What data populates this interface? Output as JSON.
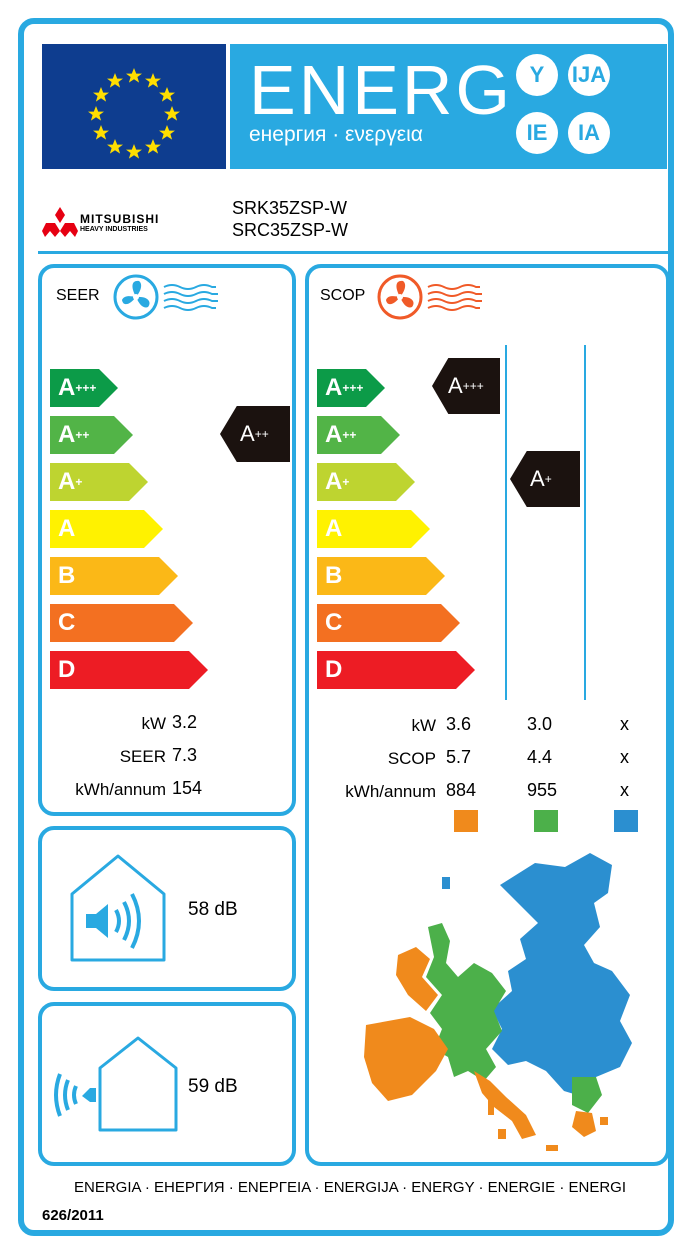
{
  "header": {
    "energy_word": "ENERG",
    "energy_subtitle": "енергия · ενεργεια",
    "suffixes": [
      "Y",
      "IJA",
      "IE",
      "IA"
    ]
  },
  "brand": {
    "name": "MITSUBISHI",
    "sub_name": "HEAVY INDUSTRIES",
    "model_indoor": "SRK35ZSP-W",
    "model_outdoor": "SRC35ZSP-W"
  },
  "scale_classes": [
    {
      "letter": "A",
      "sup": "+++",
      "color": "#0c9b48"
    },
    {
      "letter": "A",
      "sup": "++",
      "color": "#52b447"
    },
    {
      "letter": "A",
      "sup": "+",
      "color": "#bed430"
    },
    {
      "letter": "A",
      "sup": "",
      "color": "#fff200"
    },
    {
      "letter": "B",
      "sup": "",
      "color": "#fbb817"
    },
    {
      "letter": "C",
      "sup": "",
      "color": "#f37021"
    },
    {
      "letter": "D",
      "sup": "",
      "color": "#ed1c24"
    }
  ],
  "cooling": {
    "title": "SEER",
    "rating_letter": "A",
    "rating_sup": "++",
    "rows": [
      {
        "label": "kW",
        "value": "3.2"
      },
      {
        "label": "SEER",
        "value": "7.3"
      },
      {
        "label": "kWh/annum",
        "value": "154"
      }
    ]
  },
  "heating": {
    "title": "SCOP",
    "rating_average_letter": "A",
    "rating_average_sup": "+++",
    "rating_warmer_letter": "A",
    "rating_warmer_sup": "+",
    "rows": [
      {
        "label": "kW",
        "values": [
          "3.6",
          "3.0",
          "x"
        ]
      },
      {
        "label": "SCOP",
        "values": [
          "5.7",
          "4.4",
          "x"
        ]
      },
      {
        "label": "kWh/annum",
        "values": [
          "884",
          "955",
          "x"
        ]
      }
    ],
    "climate_colors": [
      "#f08a1c",
      "#4cb04a",
      "#2b8fd0"
    ]
  },
  "noise": {
    "indoor": "58 dB",
    "outdoor": "59 dB"
  },
  "footer": {
    "languages": "ENERGIA · ЕНЕРГИЯ · ΕΝΕΡΓΕΙΑ · ENERGIJA · ENERGY · ENERGIE · ENERGI",
    "regulation": "626/2011"
  },
  "colors": {
    "frame_blue": "#29a9e1",
    "eu_blue": "#0e3d8f",
    "eu_star": "#ffde00",
    "pointer_black": "#1b120f"
  }
}
